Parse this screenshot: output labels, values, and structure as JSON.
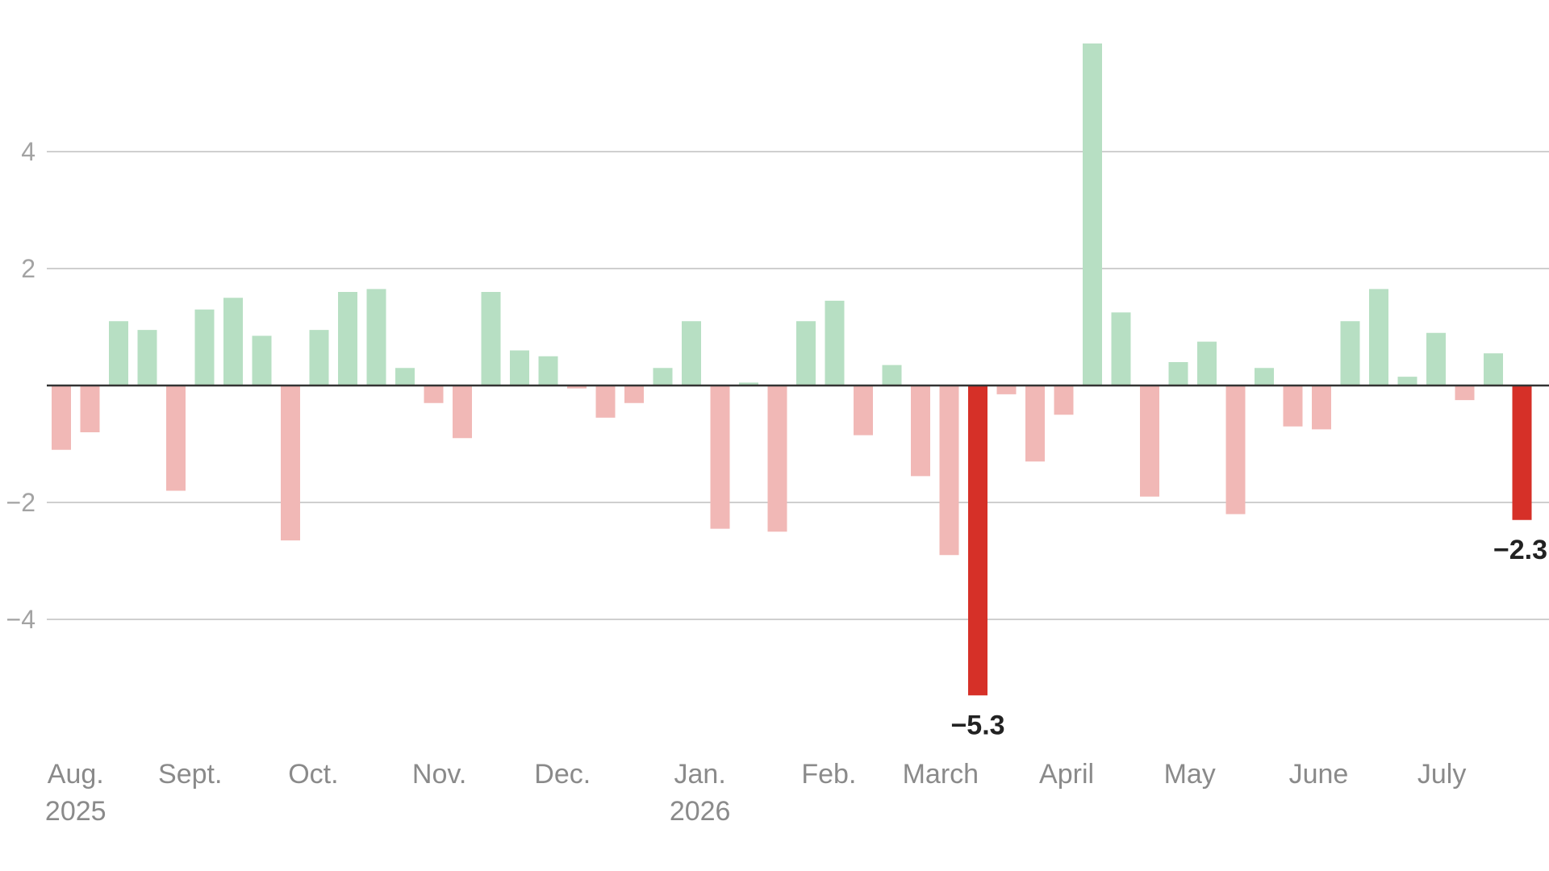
{
  "chart_data": {
    "type": "bar",
    "title": "",
    "xlabel": "",
    "ylabel": "",
    "ylim": [
      -6.7,
      5.9
    ],
    "yticks": [
      4,
      2,
      -2,
      -4
    ],
    "yticks_labels": [
      "4",
      "2",
      "−2",
      "−4"
    ],
    "grid": true,
    "colors": {
      "positive": "#b7dfc3",
      "negative": "#f1b8b6",
      "highlight": "#d63028",
      "zero_line": "#333333",
      "grid": "#cfcfcf"
    },
    "x_labels": [
      {
        "label": "Aug.",
        "sub": "2025",
        "index": 0.5
      },
      {
        "label": "Sept.",
        "sub": "",
        "index": 4.5
      },
      {
        "label": "Oct.",
        "sub": "",
        "index": 8.8
      },
      {
        "label": "Nov.",
        "sub": "",
        "index": 13.2
      },
      {
        "label": "Dec.",
        "sub": "",
        "index": 17.5
      },
      {
        "label": "Jan.",
        "sub": "2026",
        "index": 22.3
      },
      {
        "label": "Feb.",
        "sub": "",
        "index": 26.8
      },
      {
        "label": "March",
        "sub": "",
        "index": 30.7
      },
      {
        "label": "April",
        "sub": "",
        "index": 35.1
      },
      {
        "label": "May",
        "sub": "",
        "index": 39.4
      },
      {
        "label": "June",
        "sub": "",
        "index": 43.9
      },
      {
        "label": "July",
        "sub": "",
        "index": 48.2
      }
    ],
    "values": [
      -1.1,
      -0.8,
      1.1,
      0.95,
      -1.8,
      1.3,
      1.5,
      0.85,
      -2.65,
      0.95,
      1.6,
      1.65,
      0.3,
      -0.3,
      -0.9,
      1.6,
      0.6,
      0.5,
      -0.05,
      -0.55,
      -0.3,
      0.3,
      1.1,
      -2.45,
      0.05,
      -2.5,
      1.1,
      1.45,
      -0.85,
      0.35,
      -1.55,
      -2.9,
      -5.3,
      -0.15,
      -1.3,
      -0.5,
      5.85,
      1.25,
      -1.9,
      0.4,
      0.75,
      -2.2,
      0.3,
      -0.7,
      -0.75,
      1.1,
      1.65,
      0.15,
      0.9,
      -0.25,
      0.55,
      -2.3
    ],
    "highlighted": [
      {
        "index": 32,
        "label": "−5.3"
      },
      {
        "index": 51,
        "label": "−2.3"
      }
    ]
  }
}
